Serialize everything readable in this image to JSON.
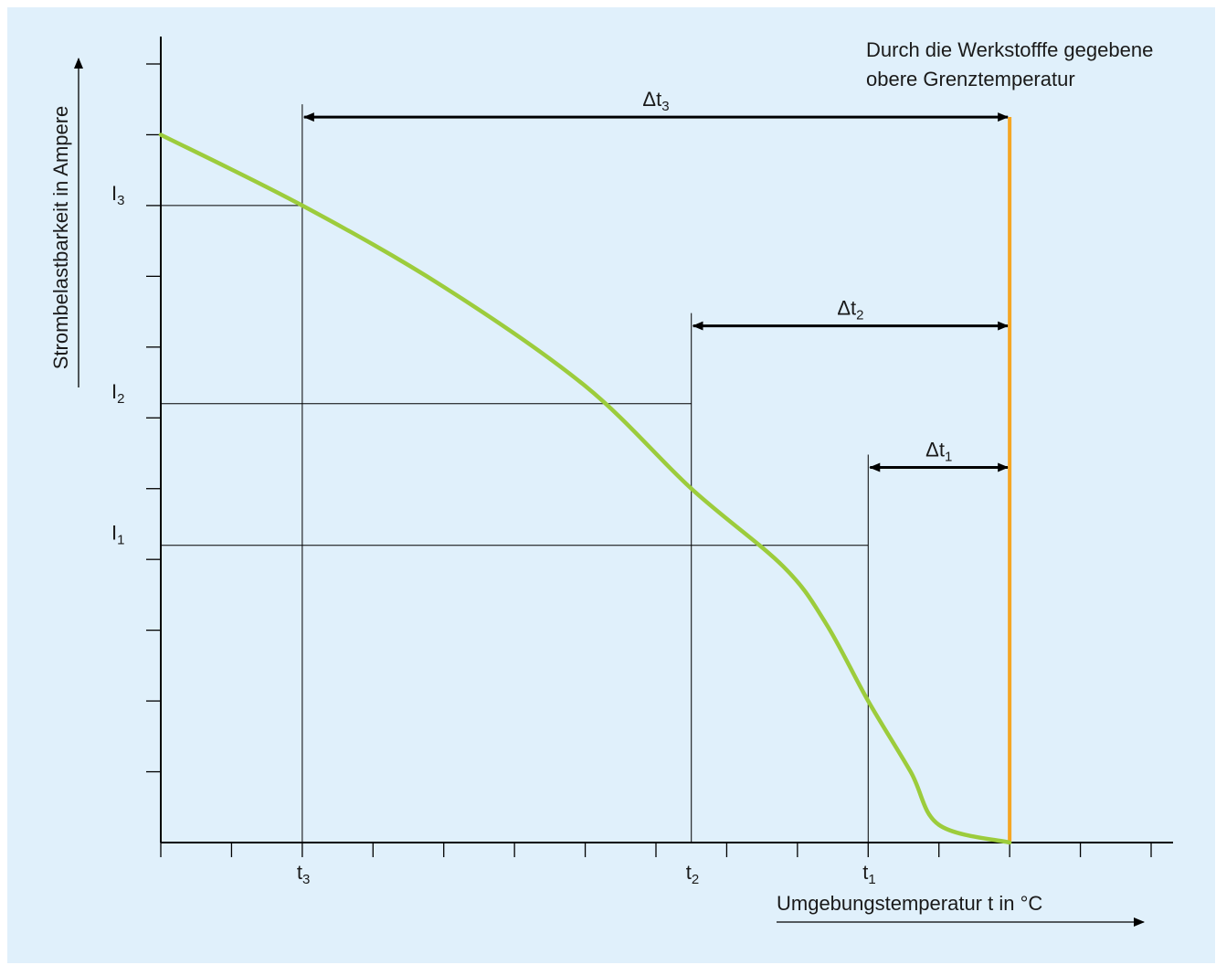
{
  "colors": {
    "background": "#e0f0fb",
    "axis": "#000000",
    "curve": "#9ccc3c",
    "limit_line": "#f5a623",
    "guide_lines": "#000000"
  },
  "chart_data": {
    "type": "line",
    "xlabel": "Umgebungstemperatur t in °C",
    "ylabel": "Strombelastbarkeit in Ampere",
    "annotation": [
      "Durch die Werkstofffe gegebene",
      "obere Grenztemperatur"
    ],
    "x_tick_count": 14,
    "y_tick_count": 11,
    "xlim": [
      0,
      14
    ],
    "ylim": [
      0,
      11
    ],
    "series": [
      {
        "points": [
          [
            0,
            10
          ],
          [
            2,
            9
          ],
          [
            4,
            7.85
          ],
          [
            6,
            6.45
          ],
          [
            7.5,
            5.0
          ],
          [
            8.8,
            3.9
          ],
          [
            9.4,
            3.1
          ],
          [
            10.0,
            2.0
          ],
          [
            10.6,
            1.0
          ],
          [
            11.0,
            0.25
          ],
          [
            12.0,
            0
          ]
        ]
      }
    ],
    "limit_x": 12,
    "markers": [
      {
        "x_label": "t",
        "x_sub": "3",
        "x": 2,
        "y_label": "I",
        "y_sub": "3",
        "y": 9,
        "delta_label": "Δt",
        "delta_sub": "3",
        "delta_y": 10.25
      },
      {
        "x_label": "t",
        "x_sub": "2",
        "x": 7.5,
        "y_label": "I",
        "y_sub": "2",
        "y": 6.2,
        "delta_label": "Δt",
        "delta_sub": "2",
        "delta_y": 7.3
      },
      {
        "x_label": "t",
        "x_sub": "1",
        "x": 10,
        "y_label": "I",
        "y_sub": "1",
        "y": 4.2,
        "delta_label": "Δt",
        "delta_sub": "1",
        "delta_y": 5.3
      }
    ]
  }
}
